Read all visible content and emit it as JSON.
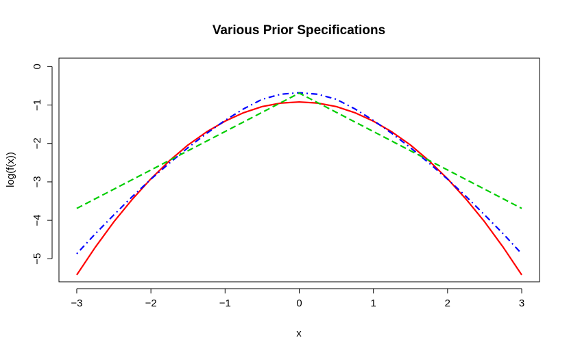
{
  "chart_data": {
    "type": "line",
    "title": "Various Prior Specifications",
    "xlabel": "x",
    "ylabel": "log(f(x))",
    "xlim": [
      -3.24,
      3.24
    ],
    "ylim": [
      -5.6,
      0.22
    ],
    "x_ticks": [
      -3,
      -2,
      -1,
      0,
      1,
      2,
      3
    ],
    "x_tick_labels": [
      "−3",
      "−2",
      "−1",
      "0",
      "1",
      "2",
      "3"
    ],
    "y_ticks": [
      0,
      -1,
      -2,
      -3,
      -4,
      -5
    ],
    "y_tick_labels": [
      "0",
      "−1",
      "−2",
      "−3",
      "−4",
      "−5"
    ],
    "grid": false,
    "legend": "none",
    "x": [
      -3,
      -2.75,
      -2.5,
      -2.25,
      -2,
      -1.75,
      -1.5,
      -1.25,
      -1,
      -0.75,
      -0.5,
      -0.25,
      0,
      0.25,
      0.5,
      0.75,
      1,
      1.25,
      1.5,
      1.75,
      2,
      2.25,
      2.5,
      2.75,
      3
    ],
    "series": [
      {
        "color": "#ff0000",
        "dash": "solid",
        "values": [
          -5.42,
          -4.7,
          -4.04,
          -3.45,
          -2.92,
          -2.45,
          -2.04,
          -1.7,
          -1.42,
          -1.2,
          -1.04,
          -0.95,
          -0.92,
          -0.95,
          -1.04,
          -1.2,
          -1.42,
          -1.7,
          -2.04,
          -2.45,
          -2.92,
          -3.45,
          -4.04,
          -4.7,
          -5.42
        ]
      },
      {
        "color": "#0000ff",
        "dash": "dotdash",
        "values": [
          -4.87,
          -4.35,
          -3.86,
          -3.38,
          -2.93,
          -2.51,
          -2.11,
          -1.74,
          -1.4,
          -1.1,
          -0.85,
          -0.72,
          -0.68,
          -0.72,
          -0.85,
          -1.1,
          -1.4,
          -1.74,
          -2.11,
          -2.51,
          -2.93,
          -3.38,
          -3.86,
          -4.35,
          -4.87
        ]
      },
      {
        "color": "#00cd00",
        "dash": "dashed",
        "values": [
          -3.69,
          -3.44,
          -3.19,
          -2.94,
          -2.69,
          -2.44,
          -2.19,
          -1.94,
          -1.69,
          -1.44,
          -1.19,
          -0.94,
          -0.69,
          -0.94,
          -1.19,
          -1.44,
          -1.69,
          -1.94,
          -2.19,
          -2.44,
          -2.69,
          -2.94,
          -3.19,
          -3.44,
          -3.69
        ]
      }
    ]
  }
}
